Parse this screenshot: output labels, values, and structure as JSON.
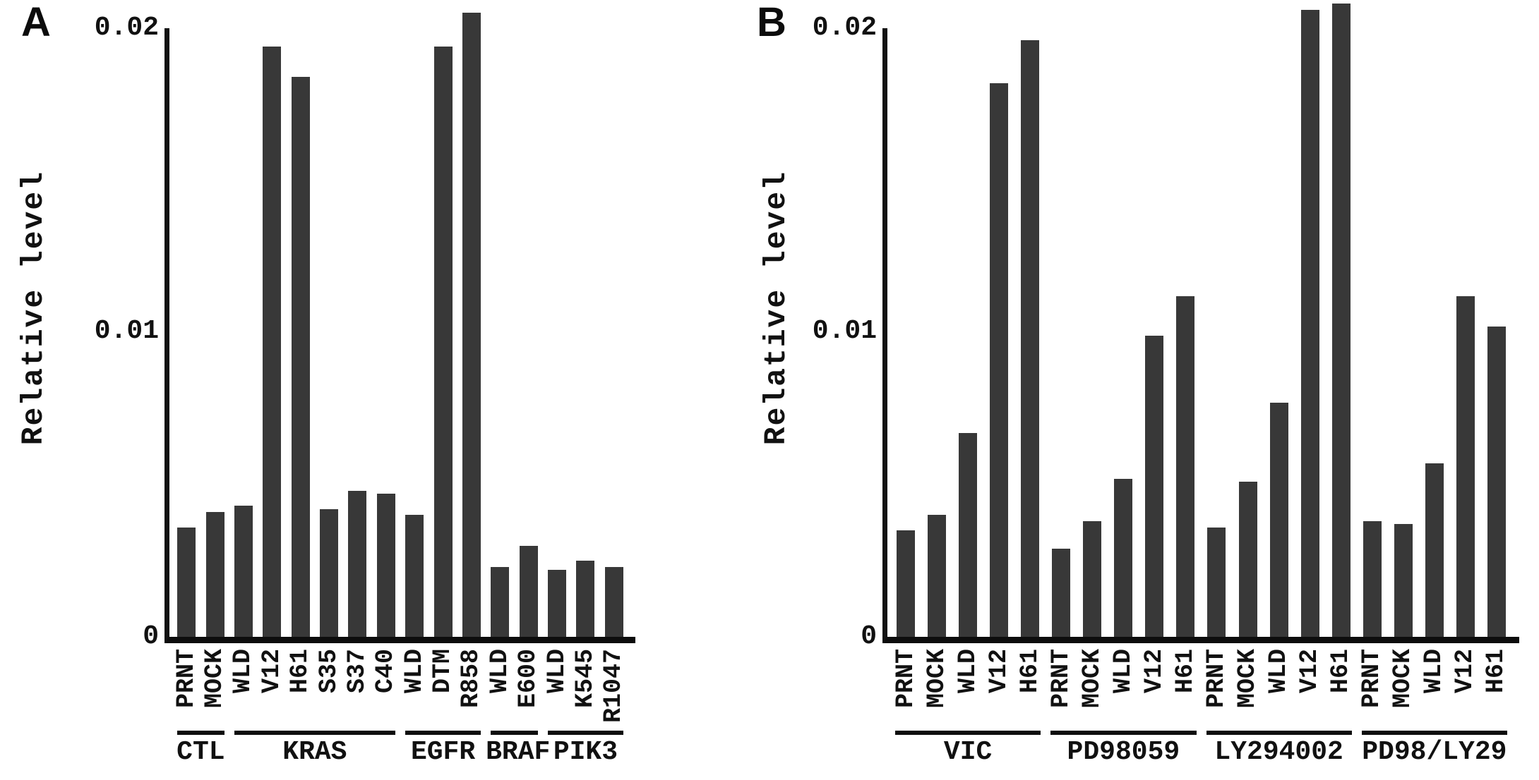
{
  "figure": {
    "background": "#ffffff",
    "text_color": "#111111",
    "axis_color": "#0d0d0d",
    "bar_color": "#383838"
  },
  "chart_data": [
    {
      "type": "bar",
      "panel_label": "A",
      "ylabel": "Relative level",
      "ylim": [
        0,
        0.02
      ],
      "grid": false,
      "legend": "none",
      "bar_color": "#383838",
      "yticks": [
        {
          "value": 0,
          "label": "0"
        },
        {
          "value": 0.01,
          "label": "0.01"
        },
        {
          "value": 0.02,
          "label": "0.02"
        }
      ],
      "groups": [
        {
          "label": "CTL",
          "bars": [
            {
              "label": "PRNT",
              "value": 0.0036
            },
            {
              "label": "MOCK",
              "value": 0.0041
            }
          ]
        },
        {
          "label": "KRAS",
          "bars": [
            {
              "label": "WLD",
              "value": 0.0043
            },
            {
              "label": "V12",
              "value": 0.0194
            },
            {
              "label": "H61",
              "value": 0.0184
            },
            {
              "label": "S35",
              "value": 0.0042
            },
            {
              "label": "S37",
              "value": 0.0048
            },
            {
              "label": "C40",
              "value": 0.0047
            }
          ]
        },
        {
          "label": "EGFR",
          "bars": [
            {
              "label": "WLD",
              "value": 0.004
            },
            {
              "label": "DTM",
              "value": 0.0194
            },
            {
              "label": "R858",
              "value": 0.0205
            }
          ]
        },
        {
          "label": "BRAF",
          "bars": [
            {
              "label": "WLD",
              "value": 0.0023
            },
            {
              "label": "E600",
              "value": 0.003
            }
          ]
        },
        {
          "label": "PIK3",
          "bars": [
            {
              "label": "WLD",
              "value": 0.0022
            },
            {
              "label": "K545",
              "value": 0.0025
            },
            {
              "label": "R1047",
              "value": 0.0023
            }
          ]
        }
      ]
    },
    {
      "type": "bar",
      "panel_label": "B",
      "ylabel": "Relative level",
      "ylim": [
        0,
        0.02
      ],
      "grid": false,
      "legend": "none",
      "bar_color": "#383838",
      "yticks": [
        {
          "value": 0,
          "label": "0"
        },
        {
          "value": 0.01,
          "label": "0.01"
        },
        {
          "value": 0.02,
          "label": "0.02"
        }
      ],
      "groups": [
        {
          "label": "VIC",
          "bars": [
            {
              "label": "PRNT",
              "value": 0.0035
            },
            {
              "label": "MOCK",
              "value": 0.004
            },
            {
              "label": "WLD",
              "value": 0.0067
            },
            {
              "label": "V12",
              "value": 0.0182
            },
            {
              "label": "H61",
              "value": 0.0196
            }
          ]
        },
        {
          "label": "PD98059",
          "bars": [
            {
              "label": "PRNT",
              "value": 0.0029
            },
            {
              "label": "MOCK",
              "value": 0.0038
            },
            {
              "label": "WLD",
              "value": 0.0052
            },
            {
              "label": "V12",
              "value": 0.0099
            },
            {
              "label": "H61",
              "value": 0.0112
            }
          ]
        },
        {
          "label": "LY294002",
          "bars": [
            {
              "label": "PRNT",
              "value": 0.0036
            },
            {
              "label": "MOCK",
              "value": 0.0051
            },
            {
              "label": "WLD",
              "value": 0.0077
            },
            {
              "label": "V12",
              "value": 0.0206
            },
            {
              "label": "H61",
              "value": 0.0208
            }
          ]
        },
        {
          "label": "PD98/LY29",
          "bars": [
            {
              "label": "PRNT",
              "value": 0.0038
            },
            {
              "label": "MOCK",
              "value": 0.0037
            },
            {
              "label": "WLD",
              "value": 0.0057
            },
            {
              "label": "V12",
              "value": 0.0112
            },
            {
              "label": "H61",
              "value": 0.0102
            }
          ]
        }
      ]
    }
  ]
}
